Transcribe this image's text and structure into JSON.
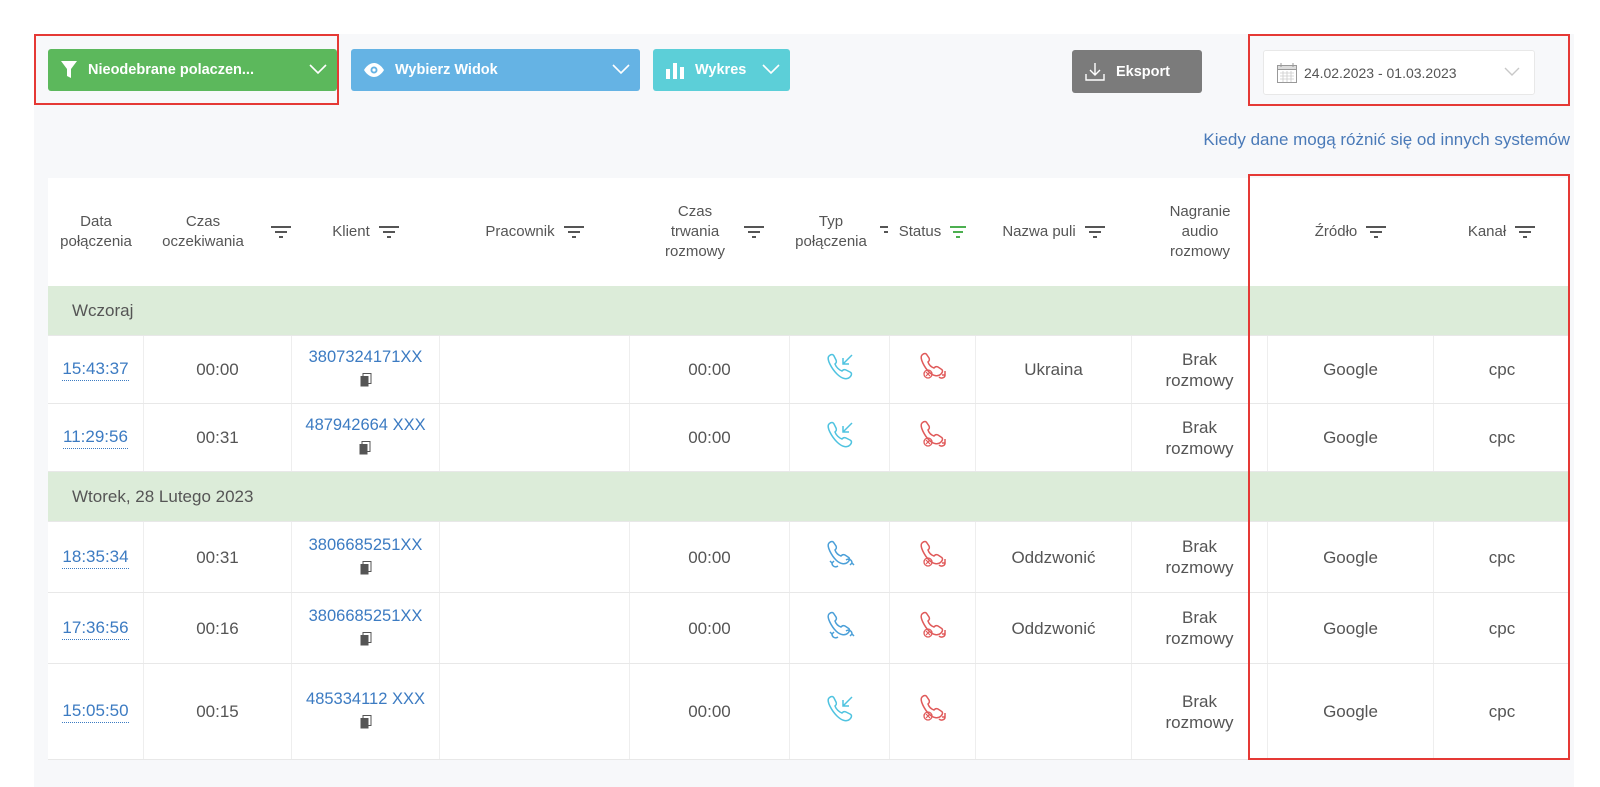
{
  "toolbar": {
    "filter_label": "Nieodebrane polaczen...",
    "view_label": "Wybierz Widok",
    "chart_label": "Wykres",
    "export_label": "Eksport",
    "date_range": "24.02.2023  -  01.03.2023"
  },
  "note": "Kiedy dane mogą różnić się od innych systemów",
  "columns": {
    "date": "Data połączenia",
    "wait": "Czas oczekiwania",
    "client": "Klient",
    "employee": "Pracownik",
    "duration": "Czas trwania rozmowy",
    "type": "Typ połączenia",
    "status": "Status",
    "pool": "Nazwa puli",
    "recording": "Nagranie audio rozmowy",
    "source": "Źródło",
    "channel": "Kanał"
  },
  "groups": [
    {
      "label": "Wczoraj",
      "rows": [
        {
          "time": "15:43:37",
          "wait": "00:00",
          "client": "3807324171XX",
          "duration": "00:00",
          "type": "incoming",
          "pool": "Ukraina",
          "recording": "Brak rozmowy",
          "source": "Google",
          "channel": "cpc"
        },
        {
          "time": "11:29:56",
          "wait": "00:31",
          "client": "487942664 XXX",
          "duration": "00:00",
          "type": "incoming",
          "pool": "",
          "recording": "Brak rozmowy",
          "source": "Google",
          "channel": "cpc"
        }
      ]
    },
    {
      "label": "Wtorek, 28 Lutego 2023",
      "rows": [
        {
          "time": "18:35:34",
          "wait": "00:31",
          "client": "3806685251XX",
          "duration": "00:00",
          "type": "callback",
          "pool": "Oddzwonić",
          "recording": "Brak rozmowy",
          "source": "Google",
          "channel": "cpc"
        },
        {
          "time": "17:36:56",
          "wait": "00:16",
          "client": "3806685251XX",
          "duration": "00:00",
          "type": "callback",
          "pool": "Oddzwonić",
          "recording": "Brak rozmowy",
          "source": "Google",
          "channel": "cpc"
        },
        {
          "time": "15:05:50",
          "wait": "00:15",
          "client": "485334112 XXX",
          "duration": "00:00",
          "type": "incoming",
          "pool": "",
          "recording": "Brak rozmowy",
          "source": "Google",
          "channel": "cpc"
        }
      ]
    }
  ],
  "colors": {
    "filter_button": "#5cb85c",
    "view_button": "#65b3e4",
    "chart_button": "#5ccfd8",
    "export_button": "#7b7b7b",
    "group_row": "#dcecd9",
    "link": "#3c7bc2",
    "missed": "#e05a5a",
    "incoming": "#4fc3e0",
    "highlight": "#e53935"
  },
  "icons": {
    "filter": "funnel-icon",
    "view": "eye-icon",
    "chart": "bar-chart-icon",
    "export": "download-icon",
    "calendar": "calendar-icon",
    "sort": "sort-filter-icon",
    "copy": "copy-icon",
    "incoming": "incoming-call-icon",
    "callback": "callback-call-icon",
    "missed": "missed-call-icon"
  }
}
